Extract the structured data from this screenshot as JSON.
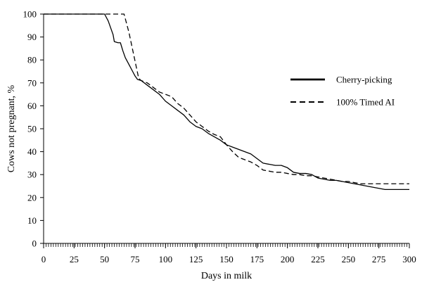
{
  "chart_data": {
    "type": "line",
    "xlabel": "Days in milk",
    "ylabel": "Cows not pregnant, %",
    "xlim": [
      0,
      300
    ],
    "ylim": [
      0,
      100
    ],
    "x_ticks": [
      0,
      25,
      50,
      75,
      100,
      125,
      150,
      175,
      200,
      225,
      250,
      275,
      300
    ],
    "y_ticks": [
      0,
      10,
      20,
      30,
      40,
      50,
      60,
      70,
      80,
      90,
      100
    ],
    "grid": false,
    "legend_position": "right",
    "series": [
      {
        "name": "Cherry-picking",
        "line_style": "solid",
        "color": "#000000",
        "points": [
          [
            0,
            100
          ],
          [
            50,
            100
          ],
          [
            53,
            97
          ],
          [
            55,
            94
          ],
          [
            57,
            91
          ],
          [
            58,
            88
          ],
          [
            61,
            87.5
          ],
          [
            63,
            87.5
          ],
          [
            65,
            84
          ],
          [
            67,
            81
          ],
          [
            69,
            79
          ],
          [
            71,
            77
          ],
          [
            73,
            75
          ],
          [
            75,
            73
          ],
          [
            77,
            71.5
          ],
          [
            80,
            71
          ],
          [
            85,
            69
          ],
          [
            90,
            67
          ],
          [
            95,
            65
          ],
          [
            100,
            62
          ],
          [
            105,
            60
          ],
          [
            110,
            58
          ],
          [
            115,
            56
          ],
          [
            120,
            53
          ],
          [
            125,
            51
          ],
          [
            130,
            50
          ],
          [
            135,
            48
          ],
          [
            140,
            46.5
          ],
          [
            145,
            45
          ],
          [
            150,
            43
          ],
          [
            155,
            42
          ],
          [
            160,
            41
          ],
          [
            165,
            40
          ],
          [
            170,
            39
          ],
          [
            175,
            37
          ],
          [
            180,
            35
          ],
          [
            185,
            34.5
          ],
          [
            190,
            34
          ],
          [
            195,
            34
          ],
          [
            200,
            33
          ],
          [
            205,
            31
          ],
          [
            210,
            30.5
          ],
          [
            215,
            30.5
          ],
          [
            220,
            30
          ],
          [
            225,
            28.5
          ],
          [
            230,
            28
          ],
          [
            235,
            27.5
          ],
          [
            240,
            27.5
          ],
          [
            245,
            27
          ],
          [
            250,
            26.5
          ],
          [
            255,
            26
          ],
          [
            260,
            25.5
          ],
          [
            265,
            25
          ],
          [
            270,
            24.5
          ],
          [
            275,
            24
          ],
          [
            280,
            23.5
          ],
          [
            290,
            23.5
          ],
          [
            300,
            23.5
          ]
        ]
      },
      {
        "name": "100% Timed AI",
        "line_style": "dashed",
        "color": "#000000",
        "points": [
          [
            0,
            100
          ],
          [
            50,
            100
          ],
          [
            60,
            100
          ],
          [
            66,
            100
          ],
          [
            68,
            96
          ],
          [
            70,
            92
          ],
          [
            72,
            87
          ],
          [
            74,
            82
          ],
          [
            76,
            77
          ],
          [
            78,
            72
          ],
          [
            80,
            71
          ],
          [
            85,
            70
          ],
          [
            90,
            68
          ],
          [
            95,
            66
          ],
          [
            100,
            65
          ],
          [
            105,
            64
          ],
          [
            110,
            61
          ],
          [
            115,
            59
          ],
          [
            120,
            56
          ],
          [
            125,
            53
          ],
          [
            130,
            51
          ],
          [
            135,
            49
          ],
          [
            140,
            47.5
          ],
          [
            145,
            46.5
          ],
          [
            150,
            43
          ],
          [
            155,
            40
          ],
          [
            160,
            37.5
          ],
          [
            165,
            36.5
          ],
          [
            170,
            35.5
          ],
          [
            175,
            34
          ],
          [
            180,
            32
          ],
          [
            185,
            31.5
          ],
          [
            190,
            31
          ],
          [
            195,
            31
          ],
          [
            200,
            30.5
          ],
          [
            205,
            30
          ],
          [
            210,
            30
          ],
          [
            215,
            29.5
          ],
          [
            220,
            29.5
          ],
          [
            225,
            29
          ],
          [
            230,
            28.5
          ],
          [
            235,
            28
          ],
          [
            240,
            27.5
          ],
          [
            245,
            27
          ],
          [
            250,
            27
          ],
          [
            255,
            26.5
          ],
          [
            260,
            26
          ],
          [
            270,
            26
          ],
          [
            280,
            26
          ],
          [
            290,
            26
          ],
          [
            300,
            26
          ]
        ]
      }
    ]
  }
}
